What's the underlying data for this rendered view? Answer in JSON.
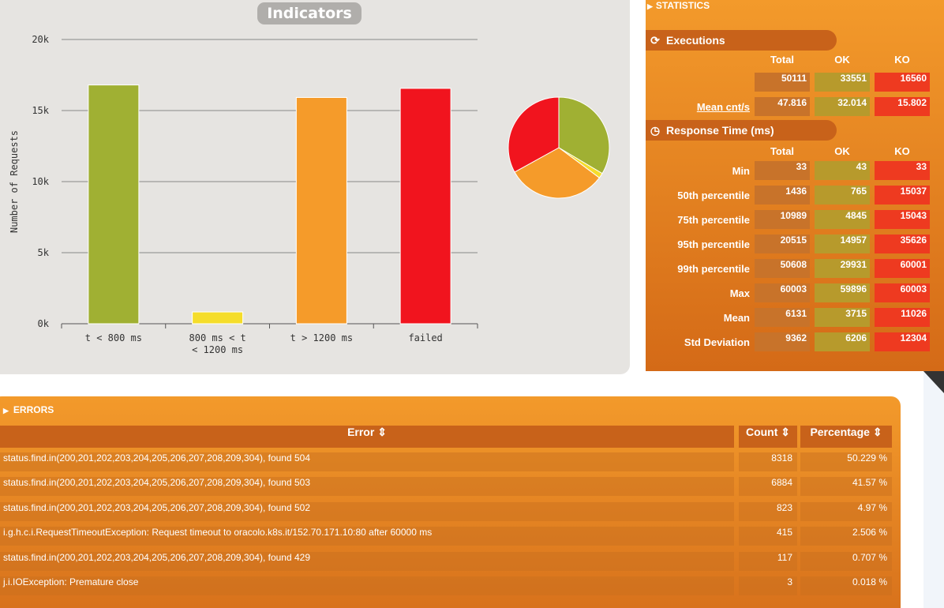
{
  "indicators": {
    "title": "Indicators"
  },
  "chart_data": {
    "type": "bar",
    "ylabel": "Number of Requests",
    "xlabel": "",
    "ylim": [
      0,
      20000
    ],
    "yticks": [
      "0k",
      "5k",
      "10k",
      "15k",
      "20k"
    ],
    "grid": true,
    "categories": [
      "t < 800 ms",
      "800 ms < t < 1200 ms",
      "t > 1200 ms",
      "failed"
    ],
    "values": [
      16800,
      830,
      15920,
      16560
    ],
    "colors": [
      "#a0b033",
      "#f5dd2a",
      "#f59b2a",
      "#f1141e"
    ],
    "pie": {
      "values": [
        16800,
        830,
        15920,
        16560
      ],
      "colors": [
        "#a0b033",
        "#f5dd2a",
        "#f59b2a",
        "#f1141e"
      ]
    }
  },
  "statistics": {
    "header": "STATISTICS",
    "executions": {
      "label": "Executions",
      "columns": [
        "Total",
        "OK",
        "KO"
      ],
      "rows": [
        {
          "label": "",
          "total": "50111",
          "ok": "33551",
          "ko": "16560"
        },
        {
          "label": "Mean cnt/s",
          "total": "47.816",
          "ok": "32.014",
          "ko": "15.802"
        }
      ]
    },
    "response_time": {
      "label": "Response Time (ms)",
      "columns": [
        "Total",
        "OK",
        "KO"
      ],
      "rows": [
        {
          "label": "Min",
          "total": "33",
          "ok": "43",
          "ko": "33"
        },
        {
          "label": "50th percentile",
          "total": "1436",
          "ok": "765",
          "ko": "15037"
        },
        {
          "label": "75th percentile",
          "total": "10989",
          "ok": "4845",
          "ko": "15043"
        },
        {
          "label": "95th percentile",
          "total": "20515",
          "ok": "14957",
          "ko": "35626"
        },
        {
          "label": "99th percentile",
          "total": "50608",
          "ok": "29931",
          "ko": "60001"
        },
        {
          "label": "Max",
          "total": "60003",
          "ok": "59896",
          "ko": "60003"
        },
        {
          "label": "Mean",
          "total": "6131",
          "ok": "3715",
          "ko": "11026"
        },
        {
          "label": "Std Deviation",
          "total": "9362",
          "ok": "6206",
          "ko": "12304"
        }
      ]
    }
  },
  "errors": {
    "header": "ERRORS",
    "columns": {
      "error": "Error",
      "count": "Count",
      "percentage": "Percentage"
    },
    "rows": [
      {
        "error": "status.find.in(200,201,202,203,204,205,206,207,208,209,304), found 504",
        "count": "8318",
        "percentage": "50.229 %"
      },
      {
        "error": "status.find.in(200,201,202,203,204,205,206,207,208,209,304), found 503",
        "count": "6884",
        "percentage": "41.57 %"
      },
      {
        "error": "status.find.in(200,201,202,203,204,205,206,207,208,209,304), found 502",
        "count": "823",
        "percentage": "4.97 %"
      },
      {
        "error": "i.g.h.c.i.RequestTimeoutException: Request timeout to oracolo.k8s.it/152.70.171.10:80 after 60000 ms",
        "count": "415",
        "percentage": "2.506 %"
      },
      {
        "error": "status.find.in(200,201,202,203,204,205,206,207,208,209,304), found 429",
        "count": "117",
        "percentage": "0.707 %"
      },
      {
        "error": "j.i.IOException: Premature close",
        "count": "3",
        "percentage": "0.018 %"
      }
    ]
  }
}
